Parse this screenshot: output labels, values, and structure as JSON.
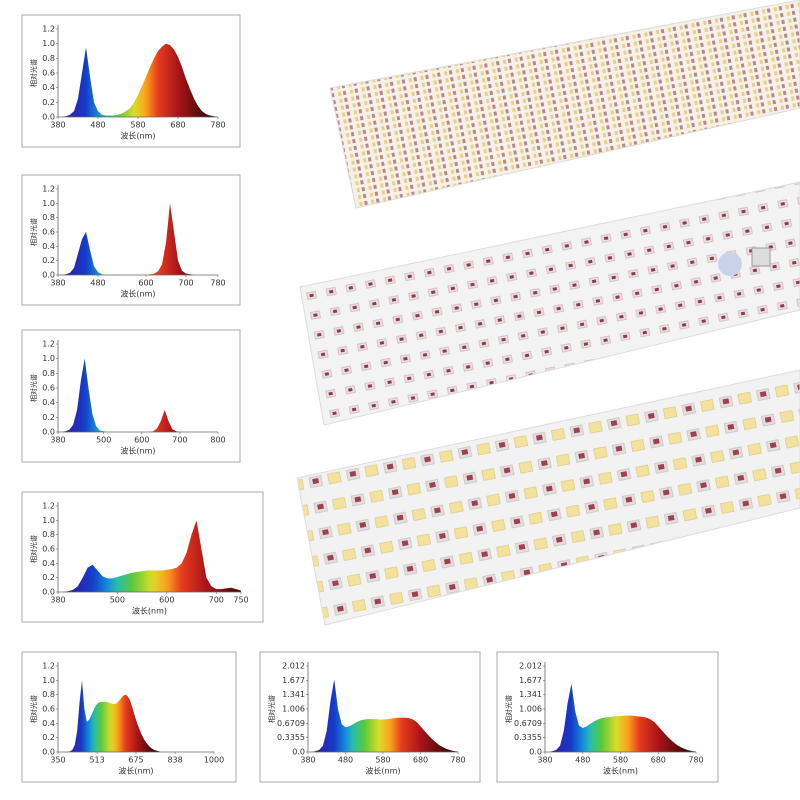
{
  "chart_data": [
    {
      "type": "area",
      "ylabel": "相对光谱",
      "xlabel": "波长(nm)",
      "x": [
        380,
        390,
        400,
        410,
        420,
        430,
        440,
        450,
        460,
        470,
        480,
        490,
        500,
        510,
        520,
        530,
        540,
        550,
        560,
        570,
        580,
        590,
        600,
        610,
        620,
        630,
        640,
        650,
        660,
        670,
        680,
        690,
        700,
        710,
        720,
        730,
        740,
        750,
        760,
        770,
        780
      ],
      "values": [
        0,
        0,
        0.01,
        0.03,
        0.08,
        0.25,
        0.6,
        0.95,
        0.55,
        0.2,
        0.08,
        0.03,
        0.02,
        0.02,
        0.02,
        0.03,
        0.05,
        0.08,
        0.12,
        0.2,
        0.3,
        0.42,
        0.55,
        0.68,
        0.8,
        0.9,
        0.96,
        1.0,
        0.98,
        0.92,
        0.82,
        0.68,
        0.52,
        0.38,
        0.25,
        0.15,
        0.08,
        0.04,
        0.02,
        0.01,
        0
      ],
      "xlim": [
        380,
        780
      ],
      "xticks": [
        380,
        480,
        580,
        680,
        780
      ],
      "ylim": [
        0,
        1.2
      ],
      "yticks": [
        {
          "value": 0,
          "label": "0.0"
        },
        0.2,
        0.4,
        0.6,
        0.8,
        {
          "value": 1,
          "label": "1.0"
        },
        1.2
      ]
    },
    {
      "type": "area",
      "ylabel": "相对光谱",
      "xlabel": "波长(nm)",
      "x": [
        380,
        390,
        400,
        410,
        420,
        430,
        440,
        450,
        460,
        470,
        480,
        490,
        500,
        510,
        520,
        530,
        540,
        550,
        560,
        570,
        580,
        590,
        600,
        610,
        620,
        630,
        640,
        650,
        660,
        670,
        680,
        690,
        700,
        710,
        720,
        730,
        740,
        750,
        760,
        770,
        780
      ],
      "values": [
        0,
        0,
        0.01,
        0.03,
        0.1,
        0.3,
        0.5,
        0.6,
        0.35,
        0.12,
        0.04,
        0.01,
        0,
        0,
        0,
        0,
        0,
        0,
        0,
        0,
        0,
        0,
        0,
        0.01,
        0.02,
        0.05,
        0.15,
        0.45,
        1.0,
        0.6,
        0.2,
        0.06,
        0.02,
        0.01,
        0,
        0,
        0,
        0,
        0,
        0,
        0
      ],
      "xlim": [
        380,
        780
      ],
      "xticks": [
        380,
        480,
        600,
        700,
        780
      ],
      "ylim": [
        0,
        1.2
      ],
      "yticks": [
        {
          "value": 0,
          "label": "0.0"
        },
        0.2,
        0.4,
        0.6,
        0.8,
        {
          "value": 1,
          "label": "1.0"
        },
        1.2
      ]
    },
    {
      "type": "area",
      "ylabel": "相对光谱",
      "xlabel": "波长(nm)",
      "x": [
        380,
        390,
        400,
        410,
        420,
        430,
        440,
        450,
        460,
        470,
        480,
        490,
        500,
        510,
        520,
        530,
        540,
        550,
        560,
        570,
        580,
        590,
        600,
        610,
        620,
        630,
        640,
        650,
        660,
        670,
        680,
        690,
        700,
        710,
        720,
        730,
        740,
        750,
        760,
        770,
        780,
        790,
        800
      ],
      "values": [
        0,
        0,
        0.01,
        0.03,
        0.1,
        0.3,
        0.7,
        1.0,
        0.6,
        0.25,
        0.08,
        0.02,
        0.01,
        0,
        0,
        0,
        0,
        0,
        0,
        0,
        0,
        0,
        0,
        0,
        0,
        0.01,
        0.05,
        0.15,
        0.3,
        0.15,
        0.04,
        0.01,
        0,
        0,
        0,
        0,
        0,
        0,
        0,
        0,
        0,
        0,
        0
      ],
      "xlim": [
        380,
        800
      ],
      "xticks": [
        380,
        500,
        600,
        700,
        800
      ],
      "ylim": [
        0,
        1.2
      ],
      "yticks": [
        {
          "value": 0,
          "label": "0.0"
        },
        0.2,
        0.4,
        0.6,
        0.8,
        {
          "value": 1,
          "label": "1.0"
        },
        1.2
      ]
    },
    {
      "type": "area",
      "ylabel": "相对光谱",
      "xlabel": "波长(nm)",
      "x": [
        380,
        390,
        400,
        410,
        420,
        430,
        440,
        450,
        460,
        470,
        480,
        490,
        500,
        510,
        520,
        530,
        540,
        550,
        560,
        570,
        580,
        590,
        600,
        610,
        620,
        630,
        640,
        650,
        660,
        670,
        680,
        690,
        700,
        710,
        720,
        730,
        740,
        750
      ],
      "values": [
        0,
        0,
        0.01,
        0.03,
        0.08,
        0.2,
        0.34,
        0.38,
        0.3,
        0.22,
        0.19,
        0.19,
        0.21,
        0.23,
        0.25,
        0.27,
        0.28,
        0.29,
        0.3,
        0.3,
        0.3,
        0.3,
        0.31,
        0.32,
        0.34,
        0.4,
        0.55,
        0.8,
        1.0,
        0.6,
        0.2,
        0.08,
        0.04,
        0.04,
        0.05,
        0.06,
        0.04,
        0.02
      ],
      "xlim": [
        380,
        750
      ],
      "xticks": [
        380,
        500,
        600,
        700,
        750
      ],
      "ylim": [
        0,
        1.2
      ],
      "yticks": [
        {
          "value": 0,
          "label": "0.0"
        },
        0.2,
        0.4,
        0.6,
        0.8,
        {
          "value": 1,
          "label": "1.0"
        },
        1.2
      ]
    },
    {
      "type": "area",
      "ylabel": "相对光谱",
      "xlabel": "波长(nm)",
      "x": [
        380,
        390,
        400,
        410,
        420,
        430,
        440,
        450,
        460,
        470,
        480,
        490,
        500,
        510,
        520,
        530,
        540,
        550,
        560,
        570,
        580,
        590,
        600,
        610,
        620,
        630,
        640,
        650,
        660,
        670,
        680,
        690,
        700,
        710,
        720,
        730,
        740,
        750,
        760,
        770,
        780,
        790,
        800
      ],
      "values": [
        0,
        0,
        0.01,
        0.03,
        0.1,
        0.3,
        0.7,
        1.0,
        0.6,
        0.42,
        0.45,
        0.52,
        0.6,
        0.66,
        0.69,
        0.7,
        0.7,
        0.7,
        0.69,
        0.68,
        0.67,
        0.67,
        0.7,
        0.74,
        0.78,
        0.8,
        0.78,
        0.72,
        0.62,
        0.5,
        0.4,
        0.31,
        0.23,
        0.17,
        0.12,
        0.08,
        0.05,
        0.03,
        0.02,
        0.01,
        0,
        0,
        0
      ],
      "xlim": [
        350,
        1000
      ],
      "xticks": [
        350,
        513,
        675,
        838,
        1000
      ],
      "ylim": [
        0,
        1.2
      ],
      "yticks": [
        {
          "value": 0,
          "label": "0.0"
        },
        0.2,
        0.4,
        0.6,
        0.8,
        {
          "value": 1,
          "label": "1.0"
        },
        1.2
      ]
    },
    {
      "type": "area",
      "ylabel": "相对光谱",
      "xlabel": "波长(nm)",
      "x": [
        380,
        390,
        400,
        410,
        420,
        430,
        440,
        450,
        460,
        470,
        480,
        490,
        500,
        510,
        520,
        530,
        540,
        550,
        560,
        570,
        580,
        590,
        600,
        610,
        620,
        630,
        640,
        650,
        660,
        670,
        680,
        690,
        700,
        710,
        720,
        730,
        740,
        750,
        760,
        770,
        780
      ],
      "values": [
        0,
        0,
        0.02,
        0.05,
        0.15,
        0.5,
        1.2,
        1.7,
        1.0,
        0.65,
        0.58,
        0.6,
        0.65,
        0.7,
        0.74,
        0.76,
        0.77,
        0.77,
        0.77,
        0.76,
        0.76,
        0.77,
        0.78,
        0.79,
        0.8,
        0.8,
        0.8,
        0.79,
        0.76,
        0.7,
        0.6,
        0.5,
        0.4,
        0.31,
        0.23,
        0.16,
        0.11,
        0.07,
        0.04,
        0.02,
        0.01
      ],
      "xlim": [
        380,
        780
      ],
      "xticks": [
        380,
        480,
        580,
        680,
        780
      ],
      "ylim": [
        0,
        2.012
      ],
      "yticks": [
        {
          "value": 0,
          "label": "0.0"
        },
        0.3355,
        0.6709,
        1.006,
        1.341,
        1.677,
        2.012
      ]
    },
    {
      "type": "area",
      "ylabel": "相对光谱",
      "xlabel": "波长(nm)",
      "x": [
        380,
        390,
        400,
        410,
        420,
        430,
        440,
        450,
        460,
        470,
        480,
        490,
        500,
        510,
        520,
        530,
        540,
        550,
        560,
        570,
        580,
        590,
        600,
        610,
        620,
        630,
        640,
        650,
        660,
        670,
        680,
        690,
        700,
        710,
        720,
        730,
        740,
        750,
        760,
        770,
        780
      ],
      "values": [
        0,
        0,
        0.02,
        0.05,
        0.15,
        0.5,
        1.15,
        1.6,
        0.95,
        0.62,
        0.56,
        0.6,
        0.66,
        0.72,
        0.76,
        0.79,
        0.81,
        0.82,
        0.83,
        0.84,
        0.84,
        0.85,
        0.85,
        0.85,
        0.84,
        0.83,
        0.82,
        0.8,
        0.76,
        0.7,
        0.6,
        0.5,
        0.4,
        0.31,
        0.23,
        0.16,
        0.11,
        0.07,
        0.04,
        0.02,
        0.01
      ],
      "xlim": [
        380,
        780
      ],
      "xticks": [
        380,
        480,
        580,
        680,
        780
      ],
      "ylim": [
        0,
        2.012
      ],
      "yticks": [
        {
          "value": 0,
          "label": "0.0"
        },
        0.3355,
        0.6709,
        1.006,
        1.341,
        1.677,
        2.012
      ]
    }
  ]
}
